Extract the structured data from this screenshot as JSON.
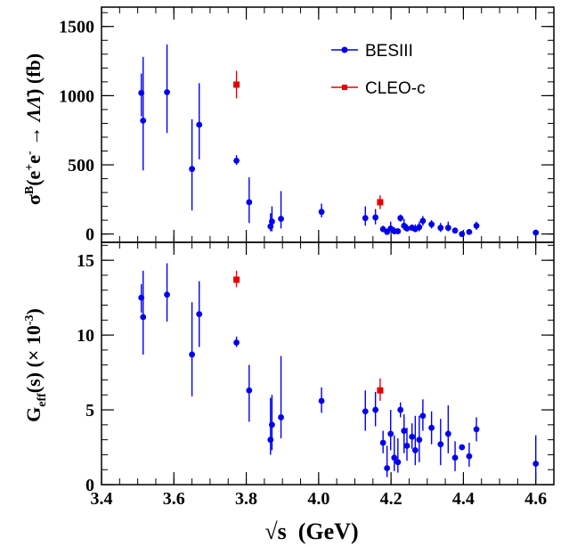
{
  "chart_data": [
    {
      "type": "scatter",
      "panel": "top",
      "ylabel": "σ^B(e^+e^- → ΛΛ̄) (fb)",
      "ylim": [
        -60,
        1640
      ],
      "yticks": [
        0,
        500,
        1000,
        1500
      ],
      "ytick_labels": [
        "0",
        "500",
        "1000",
        "1500"
      ],
      "xlim": [
        3.4,
        4.65
      ],
      "grid": false,
      "legend_position": "top-right",
      "legend": [
        "BESIII",
        "CLEO-c"
      ],
      "series": [
        {
          "name": "BESIII",
          "color": "#0000ee",
          "marker": "circle",
          "points": [
            {
              "x": 3.51,
              "y": 1020,
              "lo": 850,
              "hi": 1160
            },
            {
              "x": 3.515,
              "y": 820,
              "lo": 460,
              "hi": 1280
            },
            {
              "x": 3.581,
              "y": 1025,
              "lo": 730,
              "hi": 1370
            },
            {
              "x": 3.65,
              "y": 470,
              "lo": 170,
              "hi": 830
            },
            {
              "x": 3.67,
              "y": 790,
              "lo": 540,
              "hi": 1090
            },
            {
              "x": 3.773,
              "y": 530,
              "lo": 500,
              "hi": 570
            },
            {
              "x": 3.808,
              "y": 230,
              "lo": 80,
              "hi": 410
            },
            {
              "x": 3.867,
              "y": 55,
              "lo": 20,
              "hi": 150
            },
            {
              "x": 3.871,
              "y": 90,
              "lo": 20,
              "hi": 200
            },
            {
              "x": 3.896,
              "y": 110,
              "lo": 40,
              "hi": 310
            },
            {
              "x": 4.008,
              "y": 160,
              "lo": 120,
              "hi": 220
            },
            {
              "x": 4.129,
              "y": 115,
              "lo": 60,
              "hi": 200
            },
            {
              "x": 4.157,
              "y": 120,
              "lo": 70,
              "hi": 180
            },
            {
              "x": 4.178,
              "y": 35,
              "lo": 20,
              "hi": 60
            },
            {
              "x": 4.189,
              "y": 15,
              "lo": 5,
              "hi": 40
            },
            {
              "x": 4.199,
              "y": 40,
              "lo": 20,
              "hi": 90
            },
            {
              "x": 4.209,
              "y": 20,
              "lo": 5,
              "hi": 50
            },
            {
              "x": 4.219,
              "y": 20,
              "lo": 5,
              "hi": 40
            },
            {
              "x": 4.226,
              "y": 115,
              "lo": 90,
              "hi": 140
            },
            {
              "x": 4.236,
              "y": 60,
              "lo": 30,
              "hi": 110
            },
            {
              "x": 4.244,
              "y": 40,
              "lo": 20,
              "hi": 70
            },
            {
              "x": 4.258,
              "y": 45,
              "lo": 25,
              "hi": 70
            },
            {
              "x": 4.267,
              "y": 35,
              "lo": 15,
              "hi": 70
            },
            {
              "x": 4.278,
              "y": 50,
              "lo": 20,
              "hi": 90
            },
            {
              "x": 4.288,
              "y": 95,
              "lo": 60,
              "hi": 130
            },
            {
              "x": 4.312,
              "y": 70,
              "lo": 40,
              "hi": 100
            },
            {
              "x": 4.337,
              "y": 45,
              "lo": 15,
              "hi": 80
            },
            {
              "x": 4.358,
              "y": 45,
              "lo": 20,
              "hi": 90
            },
            {
              "x": 4.377,
              "y": 25,
              "lo": 10,
              "hi": 40
            },
            {
              "x": 4.396,
              "y": 0,
              "lo": -5,
              "hi": 10
            },
            {
              "x": 4.416,
              "y": 15,
              "lo": 5,
              "hi": 30
            },
            {
              "x": 4.436,
              "y": 60,
              "lo": 30,
              "hi": 90
            },
            {
              "x": 4.6,
              "y": 10,
              "lo": 5,
              "hi": 25
            }
          ]
        },
        {
          "name": "CLEO-c",
          "color": "#e60000",
          "marker": "square",
          "points": [
            {
              "x": 3.773,
              "y": 1080,
              "lo": 980,
              "hi": 1180
            },
            {
              "x": 4.17,
              "y": 230,
              "lo": 180,
              "hi": 280
            }
          ]
        }
      ]
    },
    {
      "type": "scatter",
      "panel": "bottom",
      "ylabel": "G_eff(s) (× 10^-3)",
      "xlabel": "√s  (GeV)",
      "ylim": [
        0,
        16.2
      ],
      "yticks": [
        0,
        5,
        10,
        15
      ],
      "ytick_labels": [
        "0",
        "5",
        "10",
        "15"
      ],
      "xlim": [
        3.4,
        4.65
      ],
      "xticks": [
        3.4,
        3.6,
        3.8,
        4.0,
        4.2,
        4.4,
        4.6
      ],
      "xtick_labels": [
        "3.4",
        "3.6",
        "3.8",
        "4.0",
        "4.2",
        "4.4",
        "4.6"
      ],
      "grid": false,
      "series": [
        {
          "name": "BESIII",
          "color": "#0000ee",
          "marker": "circle",
          "points": [
            {
              "x": 3.51,
              "y": 12.5,
              "lo": 11.5,
              "hi": 13.4
            },
            {
              "x": 3.515,
              "y": 11.2,
              "lo": 8.7,
              "hi": 14.3
            },
            {
              "x": 3.581,
              "y": 12.7,
              "lo": 10.9,
              "hi": 14.8
            },
            {
              "x": 3.65,
              "y": 8.7,
              "lo": 5.9,
              "hi": 12.2
            },
            {
              "x": 3.67,
              "y": 11.4,
              "lo": 9.2,
              "hi": 13.6
            },
            {
              "x": 3.773,
              "y": 9.5,
              "lo": 9.2,
              "hi": 9.9
            },
            {
              "x": 3.808,
              "y": 6.3,
              "lo": 4.2,
              "hi": 8.0
            },
            {
              "x": 3.867,
              "y": 3.0,
              "lo": 2.0,
              "hi": 5.8
            },
            {
              "x": 3.871,
              "y": 4.0,
              "lo": 2.3,
              "hi": 6.0
            },
            {
              "x": 3.896,
              "y": 4.5,
              "lo": 3.1,
              "hi": 8.6
            },
            {
              "x": 4.008,
              "y": 5.6,
              "lo": 4.8,
              "hi": 6.5
            },
            {
              "x": 4.129,
              "y": 4.9,
              "lo": 3.6,
              "hi": 6.3
            },
            {
              "x": 4.157,
              "y": 5.0,
              "lo": 3.9,
              "hi": 6.2
            },
            {
              "x": 4.178,
              "y": 2.8,
              "lo": 2.1,
              "hi": 3.6
            },
            {
              "x": 4.189,
              "y": 1.1,
              "lo": 0.5,
              "hi": 2.6
            },
            {
              "x": 4.199,
              "y": 3.4,
              "lo": 2.3,
              "hi": 5.0
            },
            {
              "x": 4.209,
              "y": 1.8,
              "lo": 0.9,
              "hi": 3.3
            },
            {
              "x": 4.219,
              "y": 1.5,
              "lo": 0.8,
              "hi": 3.1
            },
            {
              "x": 4.226,
              "y": 5.0,
              "lo": 4.5,
              "hi": 5.5
            },
            {
              "x": 4.236,
              "y": 3.6,
              "lo": 2.1,
              "hi": 4.7
            },
            {
              "x": 4.244,
              "y": 2.6,
              "lo": 1.6,
              "hi": 3.8
            },
            {
              "x": 4.258,
              "y": 3.2,
              "lo": 2.4,
              "hi": 4.1
            },
            {
              "x": 4.267,
              "y": 2.3,
              "lo": 1.3,
              "hi": 4.6
            },
            {
              "x": 4.278,
              "y": 3.0,
              "lo": 1.5,
              "hi": 4.6
            },
            {
              "x": 4.288,
              "y": 4.6,
              "lo": 3.6,
              "hi": 5.7
            },
            {
              "x": 4.312,
              "y": 3.8,
              "lo": 2.7,
              "hi": 4.9
            },
            {
              "x": 4.337,
              "y": 2.7,
              "lo": 1.3,
              "hi": 4.4
            },
            {
              "x": 4.358,
              "y": 3.4,
              "lo": 2.1,
              "hi": 5.3
            },
            {
              "x": 4.377,
              "y": 1.8,
              "lo": 0.9,
              "hi": 2.9
            },
            {
              "x": 4.396,
              "y": 2.5,
              "lo": 2.3,
              "hi": 2.6
            },
            {
              "x": 4.416,
              "y": 1.9,
              "lo": 1.2,
              "hi": 2.8
            },
            {
              "x": 4.436,
              "y": 3.7,
              "lo": 2.9,
              "hi": 4.5
            },
            {
              "x": 4.6,
              "y": 1.4,
              "lo": 0.3,
              "hi": 3.3
            }
          ]
        },
        {
          "name": "CLEO-c",
          "color": "#e60000",
          "marker": "square",
          "points": [
            {
              "x": 3.773,
              "y": 13.7,
              "lo": 13.2,
              "hi": 14.3
            },
            {
              "x": 4.17,
              "y": 6.3,
              "lo": 5.6,
              "hi": 7.1
            }
          ]
        }
      ]
    }
  ]
}
